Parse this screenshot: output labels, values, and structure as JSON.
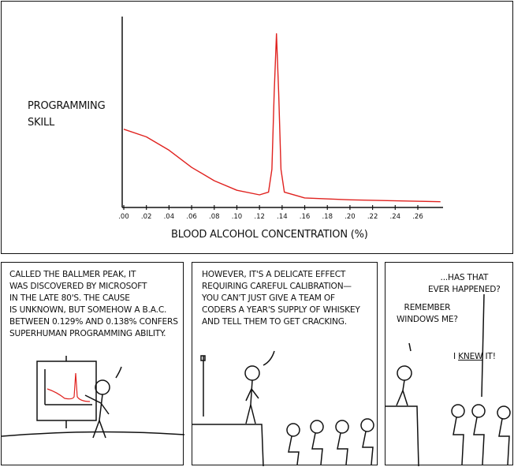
{
  "chart_data": {
    "type": "line",
    "ylabel": "PROGRAMMING SKILL",
    "xlabel": "BLOOD ALCOHOL CONCENTRATION (%)",
    "x_ticks": [
      ".00",
      ".02",
      ".04",
      ".06",
      ".08",
      ".10",
      ".12",
      ".14",
      ".16",
      ".18",
      ".20",
      ".22",
      ".24",
      ".26"
    ],
    "xlim": [
      0,
      0.285
    ],
    "ylim": [
      0,
      1
    ],
    "grid": false,
    "series_color": "#e0221f",
    "x": [
      0,
      0.02,
      0.04,
      0.06,
      0.08,
      0.1,
      0.12,
      0.128,
      0.131,
      0.133,
      0.135,
      0.137,
      0.139,
      0.142,
      0.16,
      0.2,
      0.28
    ],
    "y": [
      0.41,
      0.37,
      0.3,
      0.21,
      0.14,
      0.09,
      0.066,
      0.08,
      0.2,
      0.6,
      0.91,
      0.6,
      0.2,
      0.08,
      0.05,
      0.04,
      0.03
    ]
  },
  "panel1": {
    "caption": "CALLED THE BALLMER PEAK, IT\nWAS DISCOVERED BY MICROSOFT\nIN THE LATE 80's. THE CAUSE\nIS UNKNOWN, BUT SOMEHOW A B.A.C.\nBETWEEN 0.129% AND 0.138% CONFERS\nSUPERHUMAN PROGRAMMING ABILITY."
  },
  "panel2": {
    "caption": "HOWEVER, IT'S A DELICATE EFFECT\nREQUIRING CAREFUL CALIBRATION—\nYOU CAN'T JUST GIVE A TEAM OF\nCODERS A YEAR'S SUPPLY OF WHISKEY\nAND TELL THEM TO GET CRACKING."
  },
  "panel3": {
    "line1": "...HAS THAT\nEVER HAPPENED?",
    "line2": "REMEMBER\nWINDOWS ME?",
    "line3_pre": "I ",
    "line3_em": "KNEW",
    "line3_post": " IT!"
  }
}
